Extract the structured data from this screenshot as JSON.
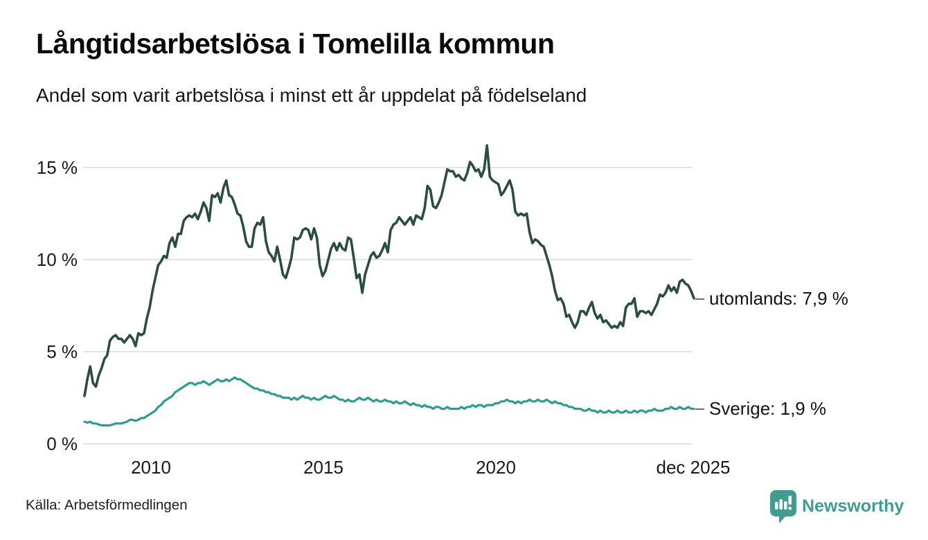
{
  "header": {
    "title": "Långtidsarbetslösa i Tomelilla kommun",
    "subtitle": "Andel som varit arbetslösa i minst ett år uppdelat på födelseland"
  },
  "footer": {
    "source": "Källa: Arbetsförmedlingen",
    "brand": "Newsworthy",
    "brand_icon": "bar-chart-speech-bubble-icon"
  },
  "colors": {
    "utomlands_line": "#2b4c43",
    "sverige_line": "#2a9d8f",
    "grid": "#e3e3e3",
    "text": "#191919",
    "brand": "#3f9c8e",
    "label_dash": "#6f6f6f"
  },
  "chart_data": {
    "type": "line",
    "title": "Långtidsarbetslösa i Tomelilla kommun",
    "subtitle": "Andel som varit arbetslösa i minst ett år uppdelat på födelseland",
    "x_unit": "month",
    "x_range": [
      "jan 2008",
      "dec 2025"
    ],
    "x_tick_labels": [
      "2010",
      "2015",
      "2020",
      "dec 2025"
    ],
    "y_ticks": [
      0,
      5,
      10,
      15
    ],
    "y_tick_labels": [
      "0 %",
      "5 %",
      "10 %",
      "15 %"
    ],
    "ylim": [
      0,
      16.6
    ],
    "grid": "horizontal",
    "legend_position": "end-of-line-labels",
    "series": [
      {
        "name": "utomlands",
        "label": "utomlands: 7,9 %",
        "last_value": 7.9,
        "color": "#2b4c43",
        "values": [
          2.6,
          3.5,
          4.2,
          3.3,
          3.1,
          3.7,
          4.1,
          4.6,
          4.8,
          5.6,
          5.8,
          5.9,
          5.7,
          5.7,
          5.5,
          5.7,
          5.9,
          5.7,
          5.3,
          6.0,
          5.9,
          6.0,
          6.8,
          7.4,
          8.3,
          9.0,
          9.7,
          9.9,
          10.2,
          10.1,
          10.9,
          11.2,
          10.7,
          11.4,
          11.4,
          12.1,
          12.3,
          12.4,
          12.3,
          12.5,
          12.2,
          12.6,
          13.1,
          12.8,
          12.1,
          13.5,
          13.4,
          13.6,
          13.1,
          13.9,
          14.3,
          13.5,
          13.4,
          13.0,
          12.5,
          12.4,
          11.8,
          11.0,
          10.7,
          10.7,
          11.7,
          12.0,
          11.9,
          12.3,
          11.0,
          10.4,
          10.2,
          9.9,
          10.7,
          10.0,
          9.2,
          9.0,
          9.5,
          10.1,
          11.2,
          11.1,
          11.2,
          11.6,
          11.7,
          11.6,
          11.1,
          11.7,
          11.2,
          9.7,
          9.1,
          9.4,
          10.0,
          10.6,
          10.9,
          10.5,
          10.9,
          10.6,
          10.5,
          11.2,
          11.1,
          10.1,
          9.0,
          9.2,
          8.2,
          9.2,
          9.7,
          10.2,
          10.4,
          10.1,
          10.2,
          10.5,
          10.9,
          10.4,
          11.6,
          11.9,
          12.0,
          12.3,
          12.1,
          11.9,
          12.1,
          12.3,
          11.9,
          12.4,
          12.3,
          12.2,
          12.8,
          14.0,
          13.8,
          12.9,
          12.8,
          13.1,
          13.5,
          14.2,
          14.9,
          14.8,
          14.8,
          14.5,
          14.6,
          14.4,
          14.3,
          14.7,
          15.3,
          15.1,
          14.8,
          14.9,
          14.5,
          14.9,
          16.2,
          14.5,
          14.3,
          14.2,
          14.1,
          13.5,
          13.7,
          14.0,
          14.3,
          13.8,
          12.6,
          12.4,
          12.5,
          12.4,
          12.5,
          11.5,
          10.9,
          11.1,
          11.0,
          10.8,
          10.7,
          10.2,
          9.7,
          9.1,
          8.3,
          7.8,
          7.9,
          7.6,
          6.9,
          7.0,
          6.6,
          6.3,
          6.6,
          7.2,
          7.2,
          7.0,
          7.4,
          7.7,
          7.1,
          6.8,
          7.0,
          6.6,
          6.7,
          6.5,
          6.3,
          6.4,
          6.3,
          6.6,
          6.4,
          7.4,
          7.6,
          7.6,
          7.9,
          6.9,
          7.2,
          7.2,
          7.1,
          7.2,
          7.0,
          7.3,
          7.6,
          8.1,
          8.0,
          8.2,
          8.6,
          8.3,
          8.5,
          8.2,
          8.8,
          8.9,
          8.7,
          8.6,
          8.3,
          7.9
        ]
      },
      {
        "name": "Sverige",
        "label": "Sverige: 1,9 %",
        "last_value": 1.9,
        "color": "#2a9d8f",
        "values": [
          1.2,
          1.15,
          1.2,
          1.1,
          1.1,
          1.05,
          1.0,
          1.0,
          1.0,
          1.0,
          1.05,
          1.1,
          1.1,
          1.1,
          1.15,
          1.2,
          1.3,
          1.3,
          1.25,
          1.3,
          1.4,
          1.4,
          1.5,
          1.6,
          1.7,
          1.8,
          2.0,
          2.1,
          2.3,
          2.4,
          2.5,
          2.6,
          2.8,
          2.9,
          3.0,
          3.1,
          3.2,
          3.3,
          3.3,
          3.2,
          3.3,
          3.3,
          3.4,
          3.3,
          3.2,
          3.3,
          3.4,
          3.5,
          3.4,
          3.4,
          3.5,
          3.4,
          3.5,
          3.6,
          3.5,
          3.5,
          3.4,
          3.3,
          3.2,
          3.1,
          3.0,
          3.0,
          2.9,
          2.9,
          2.8,
          2.8,
          2.7,
          2.7,
          2.6,
          2.6,
          2.5,
          2.5,
          2.5,
          2.4,
          2.5,
          2.4,
          2.5,
          2.6,
          2.5,
          2.5,
          2.4,
          2.5,
          2.4,
          2.4,
          2.5,
          2.6,
          2.5,
          2.5,
          2.6,
          2.5,
          2.4,
          2.4,
          2.3,
          2.4,
          2.3,
          2.3,
          2.4,
          2.5,
          2.4,
          2.4,
          2.5,
          2.4,
          2.3,
          2.4,
          2.3,
          2.3,
          2.4,
          2.3,
          2.3,
          2.2,
          2.3,
          2.2,
          2.2,
          2.3,
          2.2,
          2.1,
          2.2,
          2.1,
          2.1,
          2.0,
          2.1,
          2.0,
          2.0,
          1.9,
          2.0,
          2.0,
          1.9,
          1.9,
          2.0,
          1.9,
          1.9,
          1.9,
          1.9,
          2.0,
          1.9,
          2.0,
          2.0,
          2.1,
          2.0,
          2.1,
          2.1,
          2.0,
          2.1,
          2.1,
          2.1,
          2.2,
          2.2,
          2.3,
          2.3,
          2.4,
          2.3,
          2.3,
          2.2,
          2.3,
          2.2,
          2.3,
          2.3,
          2.4,
          2.3,
          2.3,
          2.4,
          2.3,
          2.3,
          2.4,
          2.3,
          2.2,
          2.3,
          2.2,
          2.2,
          2.1,
          2.1,
          2.0,
          2.0,
          1.9,
          1.9,
          1.9,
          1.8,
          1.8,
          1.9,
          1.8,
          1.8,
          1.7,
          1.8,
          1.7,
          1.7,
          1.8,
          1.7,
          1.7,
          1.8,
          1.7,
          1.7,
          1.8,
          1.7,
          1.7,
          1.8,
          1.7,
          1.8,
          1.8,
          1.7,
          1.8,
          1.8,
          1.9,
          1.8,
          1.8,
          1.8,
          1.9,
          1.9,
          2.0,
          1.9,
          1.9,
          2.0,
          1.9,
          1.9,
          2.0,
          1.9,
          1.9
        ]
      }
    ]
  }
}
